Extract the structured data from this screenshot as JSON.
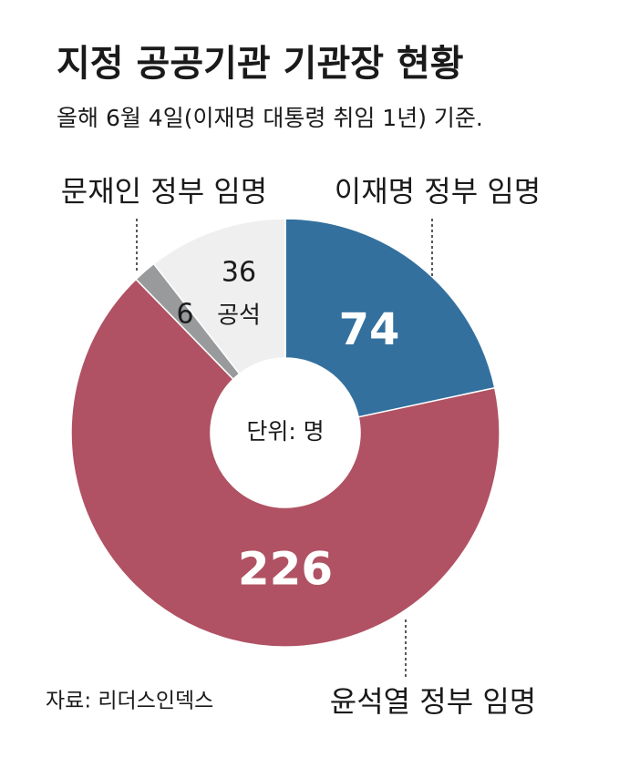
{
  "chart_data": {
    "type": "donut",
    "title": "지정 공공기관 기관장 현황",
    "subtitle": "올해 6월 4일(이재명 대통령 취임 1년) 기준.",
    "center_label": "단위: 명",
    "categories": [
      "이재명 정부 임명",
      "윤석열 정부 임명",
      "문재인 정부 임명",
      "공석"
    ],
    "values": [
      74,
      226,
      6,
      36
    ],
    "colors": [
      "#33709e",
      "#b05263",
      "#999a9c",
      "#efeff0"
    ],
    "source": "자료: 리더스인덱스"
  }
}
